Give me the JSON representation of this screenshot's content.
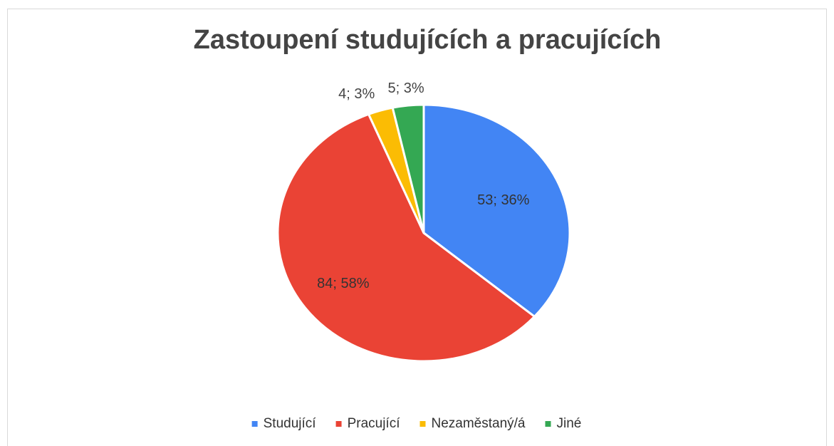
{
  "chart_data": {
    "type": "pie",
    "title": "Zastoupení studujících a pracujících",
    "categories": [
      "Studující",
      "Pracující",
      "Nezaměstaný/á",
      "Jiné"
    ],
    "values": [
      53,
      84,
      4,
      5
    ],
    "value_labels": [
      "53; 36%",
      "84; 58%",
      "4; 3%",
      "5; 3%"
    ],
    "colors": [
      "#4285f4",
      "#ea4335",
      "#fbbc04",
      "#34a853"
    ],
    "legend": "bottom"
  }
}
